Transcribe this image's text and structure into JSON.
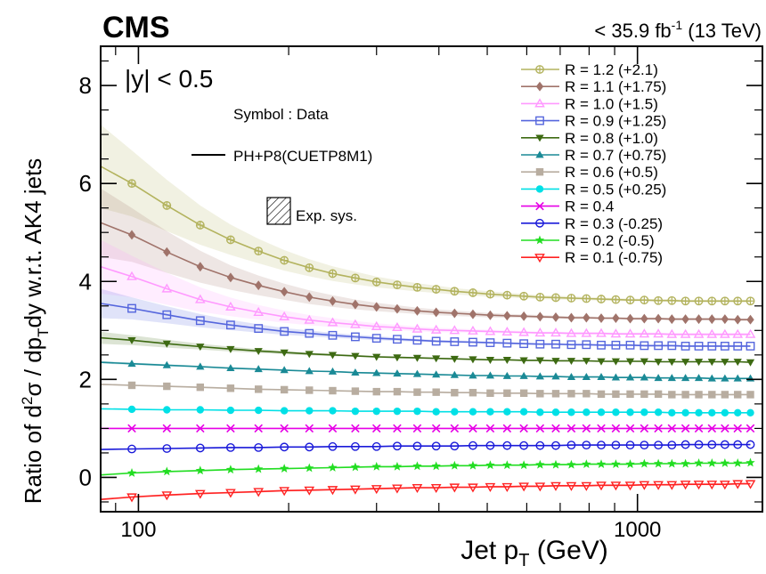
{
  "chart_data": {
    "type": "scatter",
    "experiment": "CMS",
    "lumi_label": "< 35.9 fb",
    "lumi_sup": "-1",
    "energy_label": "(13 TeV)",
    "rapidity_label": "|y| < 0.5",
    "legend_symbol_note": "Symbol : Data",
    "legend_line_note": "PH+P8(CUETP8M1)",
    "legend_band_note": "Exp. sys.",
    "xlabel_main": "Jet p",
    "xlabel_sub": "T",
    "xlabel_unit": " (GeV)",
    "ylabel_parts": [
      "Ratio of d",
      "2",
      "σ / dp",
      "T",
      "dy w.r.t. AK4 jets"
    ],
    "x_scale": "log",
    "xlim": [
      84,
      1780
    ],
    "ylim": [
      -0.7,
      8.8
    ],
    "xticks": [
      100,
      1000
    ],
    "xtick_labels": [
      "100",
      "1000"
    ],
    "yticks": [
      0,
      2,
      4,
      6,
      8
    ],
    "ytick_labels": [
      "0",
      "2",
      "4",
      "6",
      "8"
    ],
    "x": [
      84,
      97,
      114,
      133,
      153,
      174,
      196,
      220,
      245,
      272,
      300,
      330,
      362,
      395,
      430,
      468,
      507,
      548,
      592,
      638,
      686,
      737,
      790,
      846,
      905,
      967,
      1032,
      1101,
      1172,
      1248,
      1327,
      1410,
      1497,
      1588,
      1684
    ],
    "series": [
      {
        "name": "R = 1.2 (+2.1)",
        "color": "#b3b35e",
        "marker": "circle-cross",
        "offset": 2.1,
        "values": [
          6.35,
          6.0,
          5.55,
          5.15,
          4.85,
          4.62,
          4.43,
          4.28,
          4.16,
          4.07,
          3.99,
          3.93,
          3.88,
          3.84,
          3.8,
          3.77,
          3.74,
          3.72,
          3.7,
          3.68,
          3.67,
          3.66,
          3.65,
          3.64,
          3.63,
          3.62,
          3.62,
          3.61,
          3.61,
          3.6,
          3.6,
          3.6,
          3.6,
          3.6,
          3.6
        ],
        "sys": [
          1.7,
          1.35,
          1.05,
          0.8,
          0.62,
          0.5,
          0.42,
          0.35,
          0.3,
          0.26,
          0.22,
          0.19,
          0.17,
          0.15,
          0.13,
          0.12,
          0.11,
          0.1,
          0.09,
          0.08,
          0.08,
          0.07,
          0.07,
          0.06,
          0.06,
          0.06,
          0.05,
          0.05,
          0.05,
          0.05,
          0.05,
          0.05,
          0.05,
          0.05,
          0.05
        ]
      },
      {
        "name": "R = 1.1 (+1.75)",
        "color": "#a0736a",
        "marker": "diamond",
        "offset": 1.75,
        "values": [
          5.2,
          4.95,
          4.6,
          4.3,
          4.08,
          3.92,
          3.79,
          3.68,
          3.6,
          3.53,
          3.48,
          3.44,
          3.4,
          3.37,
          3.35,
          3.33,
          3.31,
          3.3,
          3.29,
          3.28,
          3.27,
          3.26,
          3.26,
          3.25,
          3.25,
          3.24,
          3.24,
          3.24,
          3.23,
          3.23,
          3.23,
          3.23,
          3.23,
          3.22,
          3.22
        ],
        "sys": [
          1.4,
          1.1,
          0.85,
          0.65,
          0.5,
          0.4,
          0.33,
          0.28,
          0.24,
          0.2,
          0.17,
          0.15,
          0.13,
          0.12,
          0.11,
          0.1,
          0.09,
          0.08,
          0.07,
          0.07,
          0.06,
          0.06,
          0.06,
          0.05,
          0.05,
          0.05,
          0.05,
          0.05,
          0.05,
          0.05,
          0.05,
          0.05,
          0.05,
          0.05,
          0.05
        ]
      },
      {
        "name": "R = 1.0 (+1.5)",
        "color": "#ff99ff",
        "marker": "triangle-up-open",
        "offset": 1.5,
        "values": [
          4.3,
          4.1,
          3.85,
          3.63,
          3.48,
          3.37,
          3.28,
          3.21,
          3.16,
          3.12,
          3.08,
          3.06,
          3.03,
          3.01,
          3.0,
          2.99,
          2.98,
          2.97,
          2.96,
          2.95,
          2.95,
          2.94,
          2.94,
          2.94,
          2.93,
          2.93,
          2.93,
          2.93,
          2.92,
          2.92,
          2.92,
          2.92,
          2.92,
          2.92,
          2.92
        ],
        "sys": [
          1.1,
          0.85,
          0.65,
          0.5,
          0.38,
          0.3,
          0.25,
          0.21,
          0.18,
          0.15,
          0.13,
          0.11,
          0.1,
          0.09,
          0.08,
          0.07,
          0.07,
          0.06,
          0.06,
          0.05,
          0.05,
          0.05,
          0.05,
          0.05,
          0.05,
          0.05,
          0.05,
          0.05,
          0.05,
          0.05,
          0.05,
          0.05,
          0.05,
          0.05,
          0.05
        ]
      },
      {
        "name": "R = 0.9 (+1.25)",
        "color": "#5566dd",
        "marker": "square-open",
        "offset": 1.25,
        "values": [
          3.55,
          3.45,
          3.32,
          3.2,
          3.11,
          3.04,
          2.98,
          2.94,
          2.9,
          2.87,
          2.84,
          2.82,
          2.8,
          2.78,
          2.77,
          2.76,
          2.75,
          2.74,
          2.73,
          2.72,
          2.72,
          2.71,
          2.71,
          2.7,
          2.7,
          2.7,
          2.69,
          2.69,
          2.69,
          2.68,
          2.68,
          2.68,
          2.68,
          2.68,
          2.68
        ],
        "sys": [
          0.6,
          0.45,
          0.35,
          0.27,
          0.21,
          0.17,
          0.14,
          0.12,
          0.1,
          0.09,
          0.08,
          0.07,
          0.06,
          0.05,
          0.05,
          0.05,
          0.04,
          0.04,
          0.04,
          0.04,
          0.04,
          0.04,
          0.04,
          0.04,
          0.04,
          0.04,
          0.04,
          0.04,
          0.04,
          0.04,
          0.04,
          0.04,
          0.04,
          0.04,
          0.04
        ]
      },
      {
        "name": "R = 0.8 (+1.0)",
        "color": "#3d6a12",
        "marker": "triangle-down-filled",
        "offset": 1.0,
        "values": [
          2.85,
          2.8,
          2.73,
          2.67,
          2.62,
          2.58,
          2.55,
          2.52,
          2.5,
          2.48,
          2.46,
          2.45,
          2.44,
          2.43,
          2.42,
          2.41,
          2.4,
          2.4,
          2.39,
          2.39,
          2.38,
          2.38,
          2.38,
          2.37,
          2.37,
          2.37,
          2.37,
          2.36,
          2.36,
          2.36,
          2.36,
          2.36,
          2.36,
          2.36,
          2.35
        ],
        "sys": [
          0.25,
          0.2,
          0.16,
          0.12,
          0.1,
          0.08,
          0.07,
          0.06,
          0.05,
          0.04,
          0.04,
          0.04,
          0.03,
          0.03,
          0.03,
          0.03,
          0.03,
          0.03,
          0.03,
          0.03,
          0.03,
          0.03,
          0.03,
          0.03,
          0.03,
          0.03,
          0.03,
          0.03,
          0.03,
          0.03,
          0.03,
          0.03,
          0.03,
          0.03,
          0.03
        ]
      },
      {
        "name": "R = 0.7 (+0.75)",
        "color": "#1a8a96",
        "marker": "triangle-up-filled",
        "offset": 0.75,
        "values": [
          2.35,
          2.32,
          2.29,
          2.26,
          2.23,
          2.21,
          2.19,
          2.17,
          2.16,
          2.14,
          2.13,
          2.12,
          2.11,
          2.1,
          2.09,
          2.08,
          2.08,
          2.07,
          2.07,
          2.06,
          2.06,
          2.05,
          2.05,
          2.05,
          2.04,
          2.04,
          2.04,
          2.03,
          2.03,
          2.03,
          2.03,
          2.02,
          2.02,
          2.02,
          2.02
        ],
        "sys": [
          0.05,
          0.05,
          0.04,
          0.04,
          0.04,
          0.03,
          0.03,
          0.03,
          0.03,
          0.03,
          0.03,
          0.03,
          0.03,
          0.03,
          0.03,
          0.03,
          0.03,
          0.03,
          0.03,
          0.03,
          0.03,
          0.03,
          0.03,
          0.03,
          0.03,
          0.03,
          0.03,
          0.03,
          0.03,
          0.03,
          0.03,
          0.03,
          0.03,
          0.03,
          0.03
        ]
      },
      {
        "name": "R = 0.6 (+0.5)",
        "color": "#b8ada0",
        "marker": "square-filled",
        "offset": 0.5,
        "values": [
          1.9,
          1.88,
          1.86,
          1.84,
          1.82,
          1.8,
          1.79,
          1.78,
          1.77,
          1.76,
          1.75,
          1.75,
          1.74,
          1.74,
          1.73,
          1.73,
          1.72,
          1.72,
          1.72,
          1.71,
          1.71,
          1.71,
          1.71,
          1.7,
          1.7,
          1.7,
          1.7,
          1.7,
          1.69,
          1.69,
          1.69,
          1.69,
          1.69,
          1.69,
          1.69
        ],
        "sys": [
          0.03,
          0.03,
          0.03,
          0.03,
          0.03,
          0.03,
          0.03,
          0.03,
          0.03,
          0.03,
          0.03,
          0.03,
          0.03,
          0.03,
          0.03,
          0.03,
          0.03,
          0.03,
          0.03,
          0.03,
          0.03,
          0.03,
          0.03,
          0.03,
          0.03,
          0.03,
          0.03,
          0.03,
          0.03,
          0.03,
          0.03,
          0.03,
          0.03,
          0.03,
          0.03
        ]
      },
      {
        "name": "R = 0.5 (+0.25)",
        "color": "#00e0e6",
        "marker": "circle-filled",
        "offset": 0.25,
        "values": [
          1.4,
          1.39,
          1.38,
          1.38,
          1.37,
          1.37,
          1.36,
          1.36,
          1.36,
          1.35,
          1.35,
          1.35,
          1.35,
          1.34,
          1.34,
          1.34,
          1.34,
          1.34,
          1.34,
          1.33,
          1.33,
          1.33,
          1.33,
          1.33,
          1.33,
          1.33,
          1.33,
          1.33,
          1.32,
          1.32,
          1.32,
          1.32,
          1.32,
          1.32,
          1.32
        ],
        "sys": [
          0.02,
          0.02,
          0.02,
          0.02,
          0.02,
          0.02,
          0.02,
          0.02,
          0.02,
          0.02,
          0.02,
          0.02,
          0.02,
          0.02,
          0.02,
          0.02,
          0.02,
          0.02,
          0.02,
          0.02,
          0.02,
          0.02,
          0.02,
          0.02,
          0.02,
          0.02,
          0.02,
          0.02,
          0.02,
          0.02,
          0.02,
          0.02,
          0.02,
          0.02,
          0.02
        ]
      },
      {
        "name": "R = 0.4",
        "color": "#e600e6",
        "marker": "x",
        "offset": 0,
        "values": [
          1.0,
          1.0,
          1.0,
          1.0,
          1.0,
          1.0,
          1.0,
          1.0,
          1.0,
          1.0,
          1.0,
          1.0,
          1.0,
          1.0,
          1.0,
          1.0,
          1.0,
          1.0,
          1.0,
          1.0,
          1.0,
          1.0,
          1.0,
          1.0,
          1.0,
          1.0,
          1.0,
          1.0,
          1.0,
          1.0,
          1.0,
          1.0,
          1.0,
          1.0,
          1.0
        ],
        "sys": [
          0,
          0,
          0,
          0,
          0,
          0,
          0,
          0,
          0,
          0,
          0,
          0,
          0,
          0,
          0,
          0,
          0,
          0,
          0,
          0,
          0,
          0,
          0,
          0,
          0,
          0,
          0,
          0,
          0,
          0,
          0,
          0,
          0,
          0,
          0
        ]
      },
      {
        "name": "R = 0.3 (-0.25)",
        "color": "#1a1ad9",
        "marker": "circle-open",
        "offset": -0.25,
        "values": [
          0.57,
          0.58,
          0.59,
          0.6,
          0.61,
          0.61,
          0.62,
          0.62,
          0.63,
          0.63,
          0.63,
          0.64,
          0.64,
          0.64,
          0.64,
          0.65,
          0.65,
          0.65,
          0.65,
          0.65,
          0.65,
          0.66,
          0.66,
          0.66,
          0.66,
          0.66,
          0.66,
          0.66,
          0.66,
          0.67,
          0.67,
          0.67,
          0.67,
          0.67,
          0.67
        ],
        "sys": [
          0.02,
          0.02,
          0.02,
          0.02,
          0.02,
          0.02,
          0.02,
          0.02,
          0.02,
          0.02,
          0.02,
          0.02,
          0.02,
          0.02,
          0.02,
          0.02,
          0.02,
          0.02,
          0.02,
          0.02,
          0.02,
          0.02,
          0.02,
          0.02,
          0.02,
          0.02,
          0.02,
          0.02,
          0.02,
          0.02,
          0.02,
          0.02,
          0.02,
          0.02,
          0.02
        ]
      },
      {
        "name": "R = 0.2 (-0.5)",
        "color": "#22dd22",
        "marker": "star",
        "offset": -0.5,
        "values": [
          0.05,
          0.09,
          0.12,
          0.14,
          0.16,
          0.17,
          0.18,
          0.19,
          0.2,
          0.21,
          0.22,
          0.22,
          0.23,
          0.23,
          0.24,
          0.24,
          0.25,
          0.25,
          0.25,
          0.26,
          0.26,
          0.26,
          0.27,
          0.27,
          0.27,
          0.27,
          0.28,
          0.28,
          0.28,
          0.28,
          0.29,
          0.29,
          0.29,
          0.29,
          0.3
        ],
        "sys": [
          0.03,
          0.03,
          0.03,
          0.03,
          0.03,
          0.03,
          0.03,
          0.03,
          0.03,
          0.03,
          0.03,
          0.03,
          0.03,
          0.03,
          0.03,
          0.03,
          0.03,
          0.03,
          0.03,
          0.03,
          0.03,
          0.03,
          0.03,
          0.03,
          0.03,
          0.03,
          0.03,
          0.03,
          0.03,
          0.03,
          0.03,
          0.03,
          0.03,
          0.03,
          0.03
        ]
      },
      {
        "name": "R = 0.1 (-0.75)",
        "color": "#ff2222",
        "marker": "triangle-down-open",
        "offset": -0.75,
        "values": [
          -0.45,
          -0.4,
          -0.36,
          -0.33,
          -0.31,
          -0.29,
          -0.27,
          -0.26,
          -0.25,
          -0.24,
          -0.23,
          -0.22,
          -0.21,
          -0.21,
          -0.2,
          -0.2,
          -0.19,
          -0.19,
          -0.18,
          -0.18,
          -0.17,
          -0.17,
          -0.17,
          -0.16,
          -0.16,
          -0.16,
          -0.15,
          -0.15,
          -0.15,
          -0.14,
          -0.14,
          -0.14,
          -0.14,
          -0.13,
          -0.13
        ],
        "sys": [
          0.04,
          0.04,
          0.04,
          0.04,
          0.04,
          0.04,
          0.04,
          0.04,
          0.04,
          0.04,
          0.04,
          0.04,
          0.04,
          0.04,
          0.04,
          0.04,
          0.04,
          0.04,
          0.04,
          0.04,
          0.04,
          0.04,
          0.04,
          0.04,
          0.04,
          0.04,
          0.04,
          0.04,
          0.04,
          0.04,
          0.04,
          0.04,
          0.04,
          0.04,
          0.04
        ]
      }
    ]
  }
}
